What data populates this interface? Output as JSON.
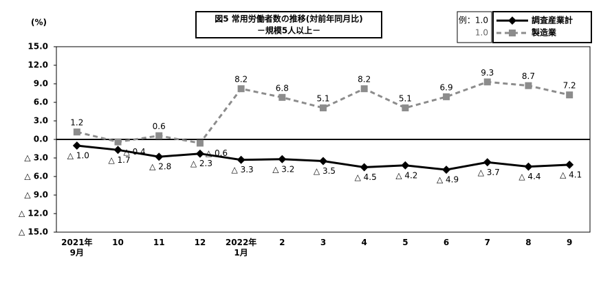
{
  "chart_data": {
    "type": "line",
    "title": "図5 常用労働者数の推移(対前年同月比)",
    "subtitle": "－規模5人以上－",
    "y_label": "(%)",
    "legend_example": [
      "例：1.0",
      "1.0"
    ],
    "categories": [
      "2021年\n9月",
      "10",
      "11",
      "12",
      "2022年\n1月",
      "2",
      "3",
      "4",
      "5",
      "6",
      "7",
      "8",
      "9"
    ],
    "series": [
      {
        "name": "調査産業計",
        "color": "#000000",
        "marker": "diamond",
        "dash": false,
        "values": [
          -1.0,
          -1.7,
          -2.8,
          -2.3,
          -3.3,
          -3.2,
          -3.5,
          -4.5,
          -4.2,
          -4.9,
          -3.7,
          -4.4,
          -4.1
        ],
        "value_labels": [
          "△ 1.0",
          "△ 1.7",
          "△ 2.8",
          "△ 2.3",
          "△ 3.3",
          "△ 3.2",
          "△ 3.5",
          "△ 4.5",
          "△ 4.2",
          "△ 4.9",
          "△ 3.7",
          "△ 4.4",
          "△ 4.1"
        ]
      },
      {
        "name": "製造業",
        "color": "#8c8c8c",
        "marker": "square",
        "dash": true,
        "values": [
          1.2,
          -0.4,
          0.6,
          -0.6,
          8.2,
          6.8,
          5.1,
          8.2,
          5.1,
          6.9,
          9.3,
          8.7,
          7.2
        ],
        "value_labels": [
          "1.2",
          "△ 0.4",
          "0.6",
          "△ 0.6",
          "8.2",
          "6.8",
          "5.1",
          "8.2",
          "5.1",
          "6.9",
          "9.3",
          "8.7",
          "7.2"
        ]
      }
    ],
    "ylim": [
      -15,
      15
    ],
    "yticks": [
      {
        "value": 15,
        "label": "15.0"
      },
      {
        "value": 12,
        "label": "12.0"
      },
      {
        "value": 9,
        "label": "9.0"
      },
      {
        "value": 6,
        "label": "6.0"
      },
      {
        "value": 3,
        "label": "3.0"
      },
      {
        "value": 0,
        "label": "0.0"
      },
      {
        "value": -3,
        "label": "△ 3.0"
      },
      {
        "value": -6,
        "label": "△ 6.0"
      },
      {
        "value": -9,
        "label": "△ 9.0"
      },
      {
        "value": -12,
        "label": "△ 12.0"
      },
      {
        "value": -15,
        "label": "△ 15.0"
      }
    ],
    "grid": false
  }
}
